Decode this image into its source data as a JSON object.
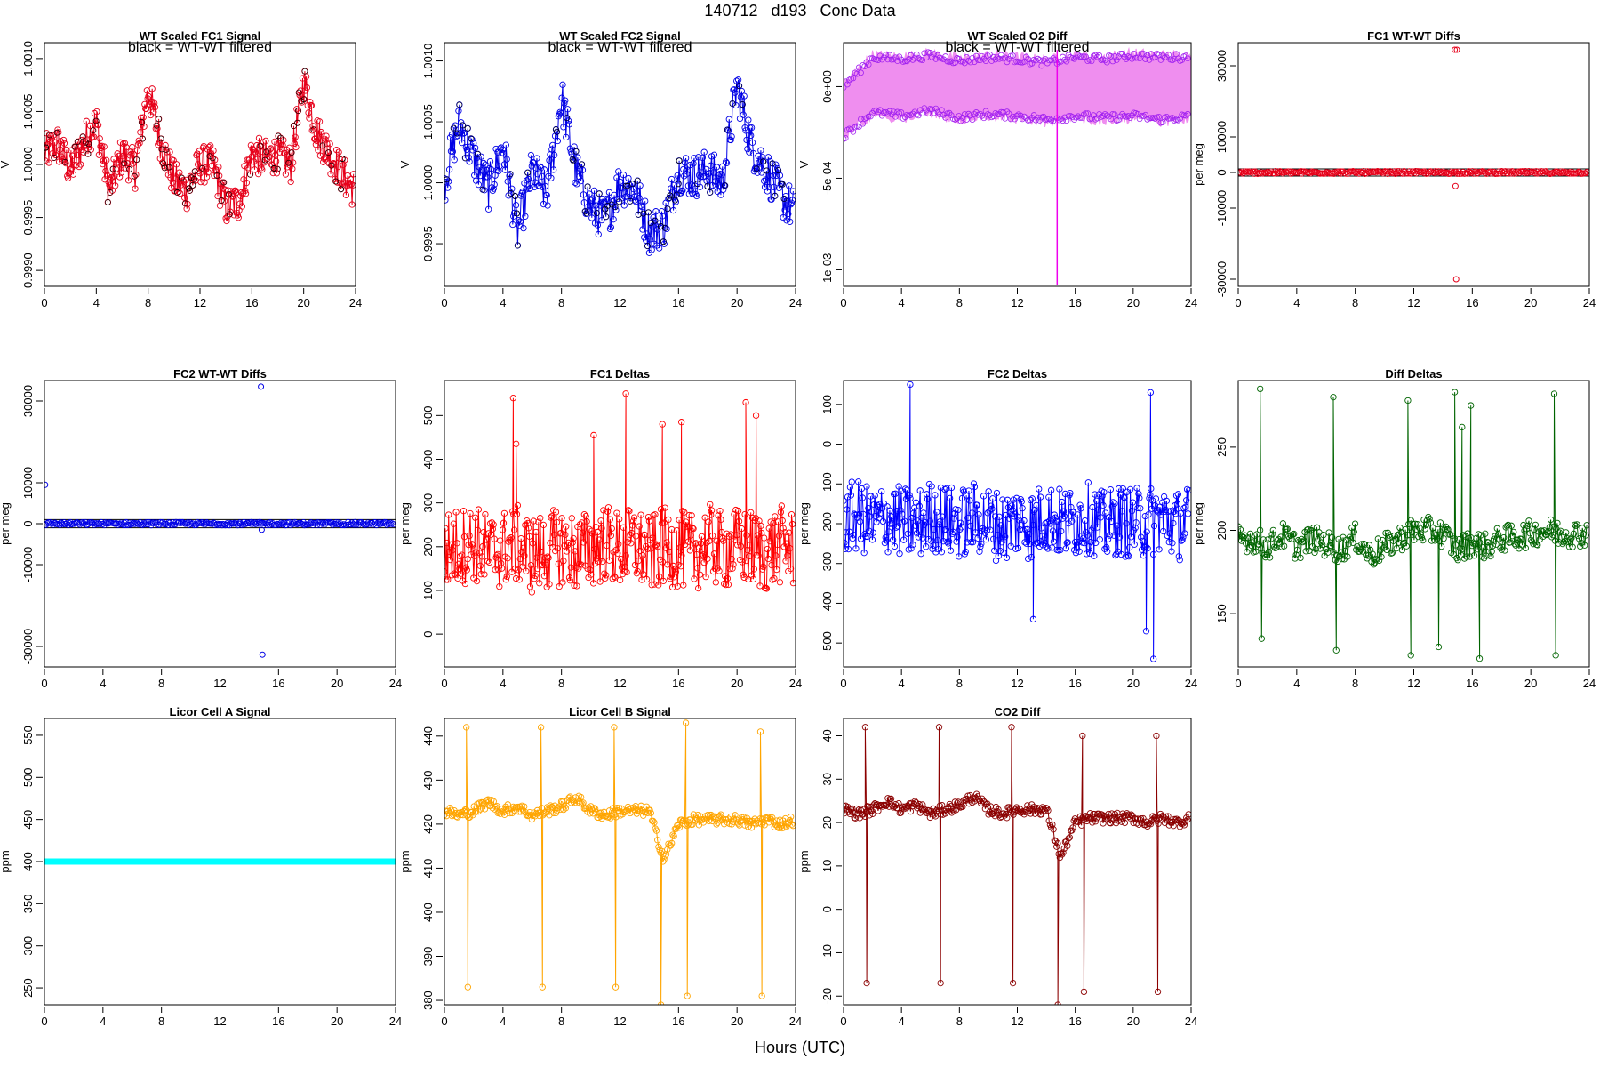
{
  "page": {
    "title": "140712   d193   Conc Data",
    "xlabel": "Hours (UTC)"
  },
  "chart_data": [
    {
      "id": "fc1sig",
      "type": "line",
      "title": "WT Scaled FC1 Signal",
      "subtitle": "black = WT-WT filtered",
      "ylabel": "V",
      "xlim": [
        0,
        24
      ],
      "ylim": [
        0.99885,
        1.00115
      ],
      "xticks": [
        0,
        4,
        8,
        12,
        16,
        20,
        24
      ],
      "xtick_labels": [
        "0",
        "4",
        "8",
        "12",
        "16",
        "20",
        "24"
      ],
      "yticks": [
        0.999,
        0.9995,
        1.0,
        1.0005,
        1.001
      ],
      "ytick_labels": [
        "0.9990",
        "0.9995",
        "1.0000",
        "1.0005",
        "1.0010"
      ],
      "color": "#e6001a",
      "series": [
        {
          "x": [
            0,
            1,
            2,
            3,
            4,
            5,
            6,
            7,
            8,
            9,
            10,
            11,
            12,
            13,
            14,
            15,
            16,
            17,
            18,
            19,
            20,
            21,
            22,
            23,
            24
          ],
          "y": [
            1.0001,
            1.0002,
            0.99995,
            1.0002,
            1.0004,
            0.99975,
            1.0001,
            0.99995,
            1.0007,
            1.0002,
            0.99985,
            0.99975,
            1.0,
            1.0,
            0.9996,
            0.99965,
            1.0001,
            1.00005,
            1.0001,
            1.0,
            1.0008,
            1.0003,
            1.0001,
            0.9999,
            0.99975
          ]
        }
      ]
    },
    {
      "id": "fc2sig",
      "type": "line",
      "title": "WT Scaled FC2 Signal",
      "subtitle": "black = WT-WT filtered",
      "ylabel": "V",
      "xlim": [
        0,
        24
      ],
      "ylim": [
        0.99915,
        1.00115
      ],
      "xticks": [
        0,
        4,
        8,
        12,
        16,
        20,
        24
      ],
      "xtick_labels": [
        "0",
        "4",
        "8",
        "12",
        "16",
        "20",
        "24"
      ],
      "yticks": [
        0.9995,
        1.0,
        1.0005,
        1.001
      ],
      "ytick_labels": [
        "0.9995",
        "1.0000",
        "1.0005",
        "1.0010"
      ],
      "color": "#0000e6",
      "series": [
        {
          "x": [
            0,
            1,
            2,
            3,
            4,
            5,
            6,
            7,
            8,
            9,
            10,
            11,
            12,
            13,
            14,
            15,
            16,
            17,
            18,
            19,
            20,
            21,
            22,
            23,
            24
          ],
          "y": [
            1.0,
            1.0005,
            1.0002,
            0.99995,
            1.0003,
            0.9996,
            1.0001,
            0.9999,
            1.0007,
            1.0001,
            0.9998,
            0.9997,
            1.0,
            0.99995,
            0.9996,
            0.99965,
            1.0001,
            1.00005,
            1.0001,
            1.0,
            1.0008,
            1.0003,
            1.0001,
            0.9999,
            0.99975
          ]
        }
      ]
    },
    {
      "id": "o2diff",
      "type": "line",
      "title": "WT Scaled O2 Diff",
      "subtitle": "black = WT-WT filtered",
      "ylabel": "V",
      "xlim": [
        0,
        24
      ],
      "ylim": [
        -0.00109,
        0.00024
      ],
      "xticks": [
        0,
        4,
        8,
        12,
        16,
        20,
        24
      ],
      "xtick_labels": [
        "0",
        "4",
        "8",
        "12",
        "16",
        "20",
        "24"
      ],
      "yticks": [
        0.0,
        -0.0005,
        -0.001
      ],
      "ytick_labels": [
        "0e+00",
        "-5e-04",
        "-1e-03"
      ],
      "color": "#a020f0",
      "fill_color": "#ee82ee",
      "series": [
        {
          "name": "upper",
          "x": [
            0,
            2,
            4,
            6,
            8,
            10,
            12,
            14,
            16,
            18,
            20,
            22,
            24
          ],
          "y": [
            0.0,
            0.00016,
            0.00015,
            0.00017,
            0.00014,
            0.00016,
            0.00015,
            0.00013,
            0.00016,
            0.00015,
            0.00017,
            0.00016,
            0.00016
          ]
        },
        {
          "name": "lower",
          "x": [
            0,
            2,
            4,
            6,
            8,
            10,
            12,
            14,
            16,
            18,
            20,
            22,
            24
          ],
          "y": [
            -0.00027,
            -0.00014,
            -0.00016,
            -0.00013,
            -0.00017,
            -0.00015,
            -0.00016,
            -0.00018,
            -0.00016,
            -0.00017,
            -0.00016,
            -0.00018,
            -0.00016
          ]
        }
      ]
    },
    {
      "id": "fc1wt",
      "type": "scatter",
      "title": "FC1 WT-WT Diffs",
      "ylabel": "per meg",
      "xlim": [
        0,
        24
      ],
      "ylim": [
        -32000,
        36500
      ],
      "xticks": [
        0,
        4,
        8,
        12,
        16,
        20,
        24
      ],
      "xtick_labels": [
        "0",
        "4",
        "8",
        "12",
        "16",
        "20",
        "24"
      ],
      "yticks": [
        -30000,
        -10000,
        0,
        10000,
        30000
      ],
      "ytick_labels": [
        "-30000",
        "-10000",
        "0",
        "10000",
        "30000"
      ],
      "hlines": [
        1000,
        -1000
      ],
      "color": "#e6001a",
      "series": [
        {
          "name": "outliers",
          "x": [
            14.8,
            14.95,
            14.85,
            14.9
          ],
          "y": [
            34500,
            34500,
            -3800,
            -30000
          ]
        }
      ]
    },
    {
      "id": "fc2wt",
      "type": "scatter",
      "title": "FC2 WT-WT Diffs",
      "ylabel": "per meg",
      "xlim": [
        0,
        24
      ],
      "ylim": [
        -35000,
        35000
      ],
      "xticks": [
        0,
        4,
        8,
        12,
        16,
        20,
        24
      ],
      "xtick_labels": [
        "0",
        "4",
        "8",
        "12",
        "16",
        "20",
        "24"
      ],
      "yticks": [
        -30000,
        -10000,
        0,
        10000,
        30000
      ],
      "ytick_labels": [
        "-30000",
        "-10000",
        "0",
        "10000",
        "30000"
      ],
      "hlines": [
        1000,
        -1000
      ],
      "color": "#0000e6",
      "series": [
        {
          "name": "outliers",
          "x": [
            0.05,
            14.8,
            14.85,
            14.9
          ],
          "y": [
            9500,
            33500,
            -1500,
            -32000
          ]
        }
      ]
    },
    {
      "id": "fc1d",
      "type": "line",
      "title": "FC1 Deltas",
      "ylabel": "per meg",
      "xlim": [
        0,
        24
      ],
      "ylim": [
        -75,
        580
      ],
      "xticks": [
        0,
        4,
        8,
        12,
        16,
        20,
        24
      ],
      "xtick_labels": [
        "0",
        "4",
        "8",
        "12",
        "16",
        "20",
        "24"
      ],
      "yticks": [
        0,
        100,
        200,
        300,
        400,
        500
      ],
      "ytick_labels": [
        "0",
        "100",
        "200",
        "300",
        "400",
        "500"
      ],
      "color": "#ff0000",
      "series": [
        {
          "x": [
            0,
            1,
            2,
            3,
            4,
            5,
            6,
            7,
            8,
            9,
            10,
            11,
            12,
            13,
            14,
            15,
            16,
            17,
            18,
            19,
            20,
            21,
            22,
            23,
            24
          ],
          "y": [
            190,
            200,
            210,
            185,
            195,
            205,
            180,
            190,
            200,
            185,
            195,
            210,
            190,
            205,
            180,
            200,
            195,
            185,
            210,
            190,
            200,
            195,
            185,
            205,
            190
          ],
          "spikes": [
            [
              4.7,
              540
            ],
            [
              4.9,
              435
            ],
            [
              12.4,
              550
            ],
            [
              10.2,
              455
            ],
            [
              14.9,
              480
            ],
            [
              16.2,
              485
            ],
            [
              20.6,
              530
            ],
            [
              21.3,
              500
            ]
          ]
        }
      ]
    },
    {
      "id": "fc2d",
      "type": "line",
      "title": "FC2 Deltas",
      "ylabel": "per meg",
      "xlim": [
        0,
        24
      ],
      "ylim": [
        -560,
        160
      ],
      "xticks": [
        0,
        4,
        8,
        12,
        16,
        20,
        24
      ],
      "xtick_labels": [
        "0",
        "4",
        "8",
        "12",
        "16",
        "20",
        "24"
      ],
      "yticks": [
        -500,
        -400,
        -300,
        -200,
        -100,
        0,
        100
      ],
      "ytick_labels": [
        "-500",
        "-400",
        "-300",
        "-200",
        "-100",
        "0",
        "100"
      ],
      "color": "#0000ff",
      "series": [
        {
          "x": [
            0,
            1,
            2,
            3,
            4,
            5,
            6,
            7,
            8,
            9,
            10,
            11,
            12,
            13,
            14,
            15,
            16,
            17,
            18,
            19,
            20,
            21,
            22,
            23,
            24
          ],
          "y": [
            -190,
            -180,
            -200,
            -185,
            -195,
            -205,
            -180,
            -190,
            -200,
            -185,
            -195,
            -210,
            -190,
            -205,
            -180,
            -200,
            -195,
            -185,
            -210,
            -190,
            -200,
            -195,
            -185,
            -205,
            -190
          ],
          "spikes": [
            [
              4.6,
              150
            ],
            [
              21.2,
              130
            ],
            [
              20.9,
              -470
            ],
            [
              21.4,
              -540
            ],
            [
              13.1,
              -440
            ]
          ]
        }
      ]
    },
    {
      "id": "diffd",
      "type": "line",
      "title": "Diff Deltas",
      "ylabel": "per meg",
      "xlim": [
        0,
        24
      ],
      "ylim": [
        118,
        290
      ],
      "xticks": [
        0,
        4,
        8,
        12,
        16,
        20,
        24
      ],
      "xtick_labels": [
        "0",
        "4",
        "8",
        "12",
        "16",
        "20",
        "24"
      ],
      "yticks": [
        150,
        200,
        250
      ],
      "ytick_labels": [
        "150",
        "200",
        "250"
      ],
      "color": "#006400",
      "series": [
        {
          "x": [
            0,
            1,
            2,
            3,
            4,
            5,
            6,
            7,
            8,
            9,
            10,
            11,
            12,
            13,
            14,
            15,
            16,
            17,
            18,
            19,
            20,
            21,
            22,
            23,
            24
          ],
          "y": [
            195,
            195,
            190,
            197,
            190,
            195,
            192,
            188,
            196,
            185,
            190,
            195,
            200,
            200,
            198,
            188,
            193,
            190,
            195,
            196,
            198,
            200,
            198,
            198,
            198
          ],
          "spikes": [
            [
              1.5,
              285
            ],
            [
              1.6,
              135
            ],
            [
              6.5,
              280
            ],
            [
              6.7,
              128
            ],
            [
              11.6,
              278
            ],
            [
              11.8,
              125
            ],
            [
              13.7,
              130
            ],
            [
              14.8,
              283
            ],
            [
              15.3,
              262
            ],
            [
              15.9,
              275
            ],
            [
              16.5,
              123
            ],
            [
              21.6,
              282
            ],
            [
              21.7,
              125
            ]
          ]
        }
      ]
    },
    {
      "id": "licA",
      "type": "line",
      "title": "Licor Cell A Signal",
      "ylabel": "ppm",
      "xlim": [
        0,
        24
      ],
      "ylim": [
        230,
        570
      ],
      "xticks": [
        0,
        4,
        8,
        12,
        16,
        20,
        24
      ],
      "xtick_labels": [
        "0",
        "4",
        "8",
        "12",
        "16",
        "20",
        "24"
      ],
      "yticks": [
        250,
        300,
        350,
        400,
        450,
        500,
        550
      ],
      "ytick_labels": [
        "250",
        "300",
        "350",
        "400",
        "450",
        "500",
        "550"
      ],
      "color": "#00ffff",
      "series": [
        {
          "x": [
            0,
            24
          ],
          "y": [
            400,
            400
          ]
        }
      ]
    },
    {
      "id": "licB",
      "type": "line",
      "title": "Licor Cell B Signal",
      "ylabel": "ppm",
      "xlim": [
        0,
        24
      ],
      "ylim": [
        379,
        444
      ],
      "xticks": [
        0,
        4,
        8,
        12,
        16,
        20,
        24
      ],
      "xtick_labels": [
        "0",
        "4",
        "8",
        "12",
        "16",
        "20",
        "24"
      ],
      "yticks": [
        380,
        390,
        400,
        410,
        420,
        430,
        440
      ],
      "ytick_labels": [
        "380",
        "390",
        "400",
        "410",
        "420",
        "430",
        "440"
      ],
      "color": "#ffa500",
      "series": [
        {
          "x": [
            0,
            1,
            2,
            3,
            4,
            5,
            6,
            7,
            8,
            9,
            10,
            11,
            12,
            13,
            14,
            15,
            16,
            17,
            18,
            19,
            20,
            21,
            22,
            23,
            24
          ],
          "y": [
            423,
            422,
            423,
            425,
            423,
            424,
            422,
            423,
            424,
            426,
            423,
            422,
            423,
            423,
            423,
            412,
            420,
            421,
            421,
            421,
            421,
            420,
            421,
            420,
            421
          ],
          "spikes": [
            [
              1.5,
              442
            ],
            [
              1.6,
              383
            ],
            [
              6.6,
              442
            ],
            [
              6.7,
              383
            ],
            [
              11.6,
              442
            ],
            [
              11.7,
              383
            ],
            [
              16.5,
              443
            ],
            [
              16.6,
              381
            ],
            [
              21.6,
              441
            ],
            [
              21.7,
              381
            ],
            [
              14.8,
              379
            ]
          ]
        }
      ]
    },
    {
      "id": "co2",
      "type": "line",
      "title": "CO2 Diff",
      "ylabel": "ppm",
      "xlim": [
        0,
        24
      ],
      "ylim": [
        -22,
        44
      ],
      "xticks": [
        0,
        4,
        8,
        12,
        16,
        20,
        24
      ],
      "xtick_labels": [
        "0",
        "4",
        "8",
        "12",
        "16",
        "20",
        "24"
      ],
      "yticks": [
        -20,
        -10,
        0,
        10,
        20,
        30,
        40
      ],
      "ytick_labels": [
        "-20",
        "-10",
        "0",
        "10",
        "20",
        "30",
        "40"
      ],
      "color": "#8b0000",
      "series": [
        {
          "x": [
            0,
            1,
            2,
            3,
            4,
            5,
            6,
            7,
            8,
            9,
            10,
            11,
            12,
            13,
            14,
            15,
            16,
            17,
            18,
            19,
            20,
            21,
            22,
            23,
            24
          ],
          "y": [
            23,
            22,
            23,
            25,
            23,
            24,
            22,
            23,
            24,
            26,
            23,
            22,
            23,
            23,
            23,
            12,
            20,
            21,
            21,
            21,
            21,
            20,
            21,
            20,
            21
          ],
          "spikes": [
            [
              1.5,
              42
            ],
            [
              1.6,
              -17
            ],
            [
              6.6,
              42
            ],
            [
              6.7,
              -17
            ],
            [
              11.6,
              42
            ],
            [
              11.7,
              -17
            ],
            [
              16.5,
              40
            ],
            [
              16.6,
              -19
            ],
            [
              21.6,
              40
            ],
            [
              21.7,
              -19
            ],
            [
              14.8,
              -22
            ]
          ]
        }
      ]
    }
  ]
}
